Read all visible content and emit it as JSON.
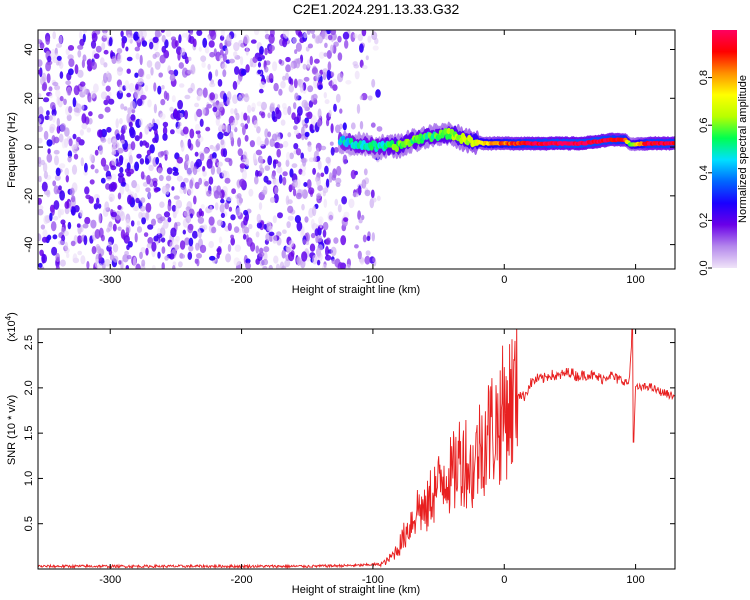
{
  "title": "C2E1.2024.291.13.33.G32",
  "chart_data": [
    {
      "type": "heatmap",
      "xlabel": "Height of straight line (km)",
      "ylabel": "Frequency (Hz)",
      "xlim": [
        -355,
        130
      ],
      "ylim": [
        -50,
        48
      ],
      "xticks": [
        "-300",
        "-200",
        "-100",
        "0",
        "100"
      ],
      "yticks": [
        "-40",
        "-20",
        "0",
        "20",
        "40"
      ],
      "noise_region_x": [
        -355,
        -95
      ],
      "signal_band": [
        {
          "x": -125,
          "freq": 2.5,
          "amp": 0.45
        },
        {
          "x": -110,
          "freq": 1.0,
          "amp": 0.5
        },
        {
          "x": -95,
          "freq": 0.0,
          "amp": 0.5
        },
        {
          "x": -80,
          "freq": 0.5,
          "amp": 0.6
        },
        {
          "x": -65,
          "freq": 3.5,
          "amp": 0.55
        },
        {
          "x": -50,
          "freq": 5.0,
          "amp": 0.55
        },
        {
          "x": -40,
          "freq": 5.5,
          "amp": 0.6
        },
        {
          "x": -30,
          "freq": 3.0,
          "amp": 0.65
        },
        {
          "x": -15,
          "freq": 1.5,
          "amp": 0.75
        },
        {
          "x": 0,
          "freq": 1.5,
          "amp": 0.85
        },
        {
          "x": 20,
          "freq": 1.5,
          "amp": 0.95
        },
        {
          "x": 40,
          "freq": 1.5,
          "amp": 1.0
        },
        {
          "x": 60,
          "freq": 1.5,
          "amp": 1.0
        },
        {
          "x": 80,
          "freq": 3.0,
          "amp": 0.95
        },
        {
          "x": 92,
          "freq": 3.0,
          "amp": 0.9
        },
        {
          "x": 96,
          "freq": 1.0,
          "amp": 0.6
        },
        {
          "x": 110,
          "freq": 1.5,
          "amp": 0.95
        },
        {
          "x": 130,
          "freq": 1.5,
          "amp": 0.95
        }
      ],
      "colorbar": {
        "label": "Normalized spectral amplitude",
        "ticks": [
          "0.0",
          "0.2",
          "0.4",
          "0.6",
          "0.8"
        ],
        "range": [
          0,
          1
        ],
        "colors": [
          "#f0e4f8",
          "#b487ec",
          "#6a00e8",
          "#1a00ff",
          "#0066ff",
          "#00e0ff",
          "#00ff50",
          "#b8ff00",
          "#ffff00",
          "#ff9000",
          "#ff0000",
          "#ff0060"
        ]
      }
    },
    {
      "type": "line",
      "xlabel": "Height of straight line (km)",
      "ylabel": "SNR (10 * v/v)",
      "y_multiplier": "(x10^4)",
      "xlim": [
        -355,
        130
      ],
      "ylim": [
        0,
        2.65
      ],
      "xticks": [
        "-300",
        "-200",
        "-100",
        "0",
        "100"
      ],
      "yticks": [
        "0.5",
        "1.0",
        "1.5",
        "2.0",
        "2.5"
      ],
      "color": "#e82020",
      "series": [
        {
          "x": [
            -355,
            -300,
            -200,
            -150,
            -110,
            -100,
            -95,
            -90,
            -85,
            -80,
            -75,
            -70,
            -65,
            -60,
            -55,
            -50,
            -45,
            -40,
            -35,
            -30,
            -25,
            -20,
            -15,
            -10,
            -5,
            0,
            5,
            10,
            15,
            20,
            25,
            30,
            35,
            40,
            45,
            50,
            55,
            60,
            65,
            70,
            75,
            80,
            85,
            90,
            95,
            97,
            99,
            100,
            105,
            110,
            115,
            120,
            125,
            130
          ],
          "values": [
            0.03,
            0.03,
            0.03,
            0.03,
            0.04,
            0.05,
            0.05,
            0.08,
            0.15,
            0.25,
            0.4,
            0.55,
            0.7,
            0.6,
            0.85,
            0.9,
            1.1,
            1.0,
            1.2,
            1.25,
            1.05,
            1.3,
            1.45,
            1.55,
            1.6,
            1.75,
            1.85,
            1.95,
            1.9,
            2.05,
            2.1,
            2.1,
            2.15,
            2.12,
            2.15,
            2.18,
            2.13,
            2.14,
            2.15,
            2.12,
            2.1,
            2.15,
            2.1,
            2.08,
            2.05,
            2.5,
            1.6,
            2.0,
            2.0,
            2.02,
            1.98,
            1.95,
            1.93,
            1.9
          ]
        }
      ]
    }
  ]
}
